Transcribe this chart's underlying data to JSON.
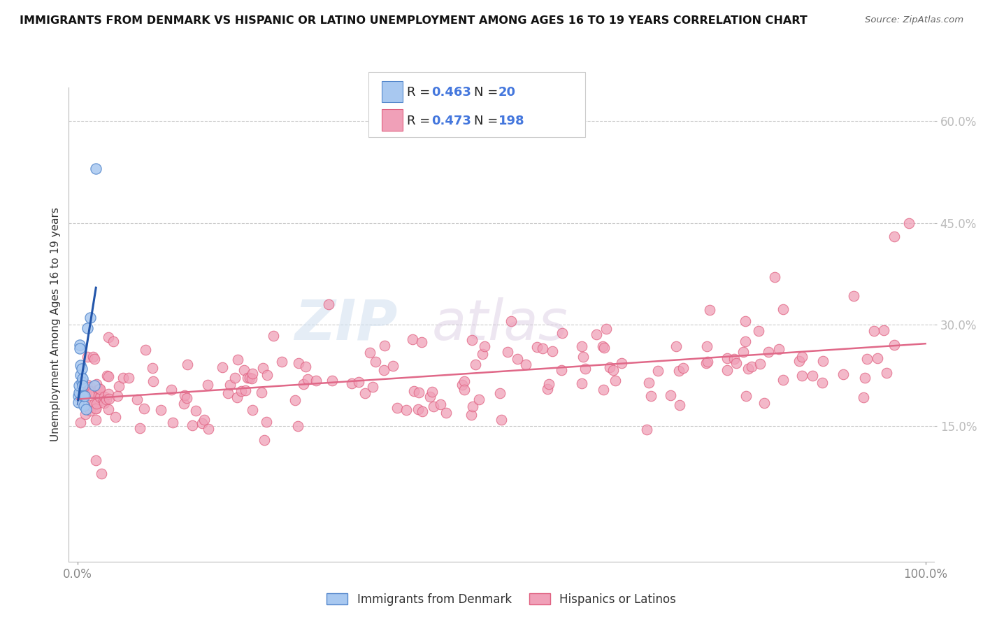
{
  "title": "IMMIGRANTS FROM DENMARK VS HISPANIC OR LATINO UNEMPLOYMENT AMONG AGES 16 TO 19 YEARS CORRELATION CHART",
  "source": "Source: ZipAtlas.com",
  "ylabel": "Unemployment Among Ages 16 to 19 years",
  "blue_color": "#A8C8F0",
  "pink_color": "#F0A0B8",
  "blue_edge_color": "#5588CC",
  "pink_edge_color": "#E06080",
  "blue_line_color": "#2255AA",
  "pink_line_color": "#E06888",
  "watermark_zip": "ZIP",
  "watermark_atlas": "atlas",
  "legend_r1": "0.463",
  "legend_n1": "20",
  "legend_r2": "0.473",
  "legend_n2": "198",
  "ytick_color": "#4477CC",
  "blue_x": [
    0.001,
    0.001,
    0.002,
    0.002,
    0.003,
    0.003,
    0.004,
    0.004,
    0.005,
    0.005,
    0.006,
    0.006,
    0.007,
    0.008,
    0.009,
    0.01,
    0.012,
    0.015,
    0.02,
    0.022
  ],
  "blue_y": [
    0.195,
    0.185,
    0.2,
    0.21,
    0.27,
    0.265,
    0.24,
    0.225,
    0.235,
    0.215,
    0.22,
    0.21,
    0.195,
    0.18,
    0.195,
    0.175,
    0.295,
    0.31,
    0.21,
    0.53
  ]
}
